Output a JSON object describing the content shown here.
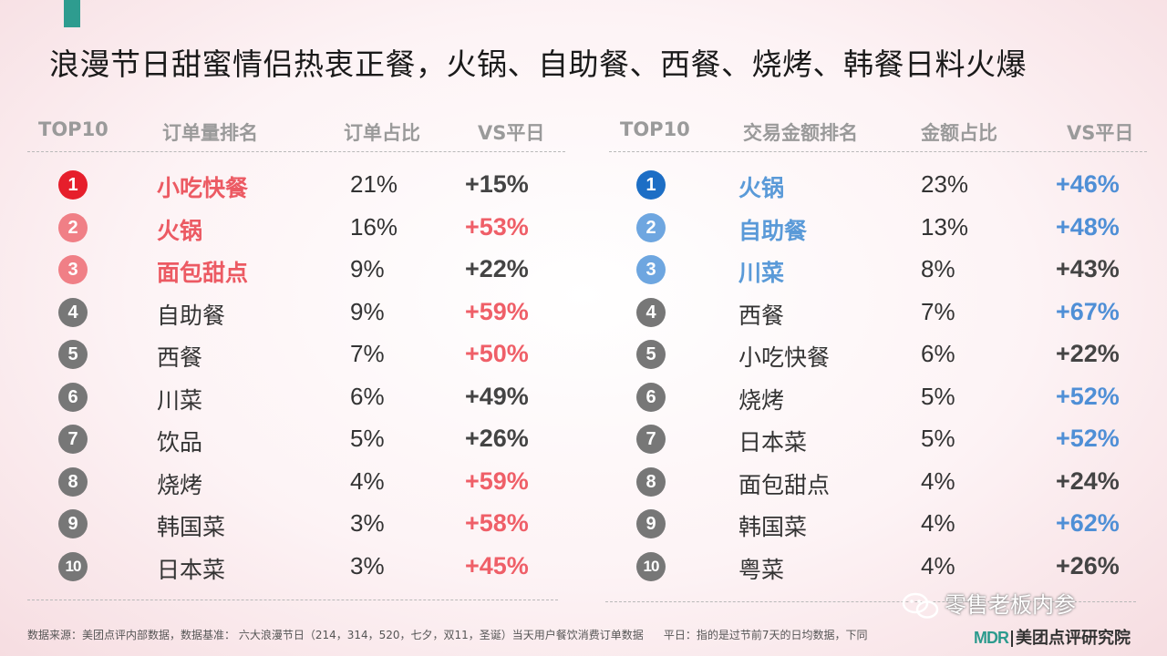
{
  "title": "浪漫节日甜蜜情侣热衷正餐，火锅、自助餐、西餐、烧烤、韩餐日料火爆",
  "colors": {
    "pink_top": "#e61e2b",
    "pink": "#f07f86",
    "blue_top": "#1d6ec5",
    "blue": "#6ea6e0",
    "gray": "#777777"
  },
  "left": {
    "headers": {
      "top": "TOP10",
      "name": "订单量排名",
      "share": "订单占比",
      "vs": "VS平日"
    },
    "rows": [
      {
        "rank": "1",
        "name": "小吃快餐",
        "share": "21%",
        "vs": "+15%"
      },
      {
        "rank": "2",
        "name": "火锅",
        "share": "16%",
        "vs": "+53%"
      },
      {
        "rank": "3",
        "name": "面包甜点",
        "share": "9%",
        "vs": "+22%"
      },
      {
        "rank": "4",
        "name": "自助餐",
        "share": "9%",
        "vs": "+59%"
      },
      {
        "rank": "5",
        "name": "西餐",
        "share": "7%",
        "vs": "+50%"
      },
      {
        "rank": "6",
        "name": "川菜",
        "share": "6%",
        "vs": "+49%"
      },
      {
        "rank": "7",
        "name": "饮品",
        "share": "5%",
        "vs": "+26%"
      },
      {
        "rank": "8",
        "name": "烧烤",
        "share": "4%",
        "vs": "+59%"
      },
      {
        "rank": "9",
        "name": "韩国菜",
        "share": "3%",
        "vs": "+58%"
      },
      {
        "rank": "10",
        "name": "日本菜",
        "share": "3%",
        "vs": "+45%"
      }
    ]
  },
  "right": {
    "headers": {
      "top": "TOP10",
      "name": "交易金额排名",
      "share": "金额占比",
      "vs": "VS平日"
    },
    "rows": [
      {
        "rank": "1",
        "name": "火锅",
        "share": "23%",
        "vs": "+46%"
      },
      {
        "rank": "2",
        "name": "自助餐",
        "share": "13%",
        "vs": "+48%"
      },
      {
        "rank": "3",
        "name": "川菜",
        "share": "8%",
        "vs": "+43%"
      },
      {
        "rank": "4",
        "name": "西餐",
        "share": "7%",
        "vs": "+67%"
      },
      {
        "rank": "5",
        "name": "小吃快餐",
        "share": "6%",
        "vs": "+22%"
      },
      {
        "rank": "6",
        "name": "烧烤",
        "share": "5%",
        "vs": "+52%"
      },
      {
        "rank": "7",
        "name": "日本菜",
        "share": "5%",
        "vs": "+52%"
      },
      {
        "rank": "8",
        "name": "面包甜点",
        "share": "4%",
        "vs": "+24%"
      },
      {
        "rank": "9",
        "name": "韩国菜",
        "share": "4%",
        "vs": "+62%"
      },
      {
        "rank": "10",
        "name": "粤菜",
        "share": "4%",
        "vs": "+26%"
      }
    ]
  },
  "footer": {
    "source": "数据来源：美团点评内部数据，数据基准： 六大浪漫节日（214，314，520，七夕，双11，圣诞）当天用户餐饮消费订单数据",
    "note": "平日：指的是过节前7天的日均数据，下同"
  },
  "watermark": "零售老板内参",
  "logo": {
    "mdr": "MDR",
    "name": "美团点评研究院"
  }
}
